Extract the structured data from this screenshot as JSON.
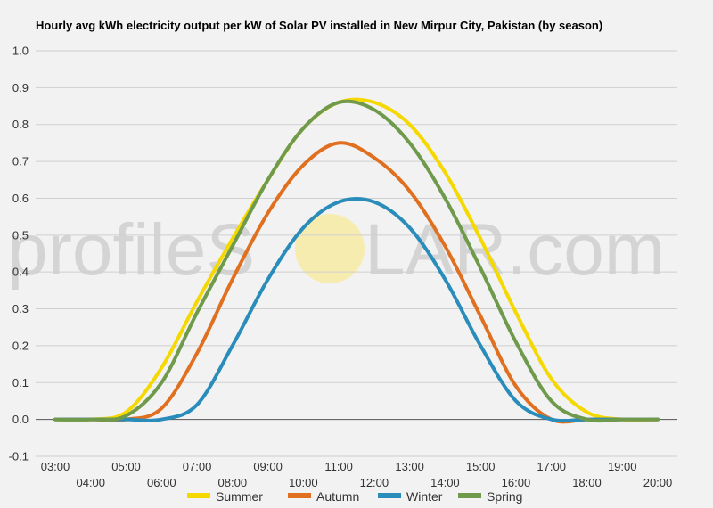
{
  "chart_data": {
    "type": "line",
    "title": "Hourly avg kWh electricity output per kW of Solar PV installed in New Mirpur City, Pakistan (by season)",
    "xlabel": "",
    "ylabel": "",
    "ylim": [
      -0.1,
      1.0
    ],
    "yticks": [
      "-0.1",
      "0.0",
      "0.1",
      "0.2",
      "0.3",
      "0.4",
      "0.5",
      "0.6",
      "0.7",
      "0.8",
      "0.9",
      "1.0"
    ],
    "xticks": [
      "03:00",
      "04:00",
      "05:00",
      "06:00",
      "07:00",
      "08:00",
      "09:00",
      "10:00",
      "11:00",
      "12:00",
      "13:00",
      "14:00",
      "15:00",
      "16:00",
      "17:00",
      "18:00",
      "19:00",
      "20:00"
    ],
    "x": [
      "03:00",
      "04:00",
      "05:00",
      "06:00",
      "07:00",
      "08:00",
      "09:00",
      "10:00",
      "11:00",
      "12:00",
      "13:00",
      "14:00",
      "15:00",
      "16:00",
      "17:00",
      "18:00",
      "19:00",
      "20:00"
    ],
    "grid": true,
    "legend_position": "bottom",
    "series": [
      {
        "name": "Summer",
        "color": "#f5d800",
        "values": [
          0.0,
          0.0,
          0.02,
          0.14,
          0.32,
          0.49,
          0.65,
          0.79,
          0.86,
          0.86,
          0.8,
          0.67,
          0.49,
          0.29,
          0.11,
          0.02,
          0.0,
          0.0
        ]
      },
      {
        "name": "Autumn",
        "color": "#e07020",
        "values": [
          0.0,
          0.0,
          0.0,
          0.03,
          0.18,
          0.38,
          0.56,
          0.69,
          0.75,
          0.71,
          0.62,
          0.47,
          0.28,
          0.09,
          0.0,
          0.0,
          0.0,
          0.0
        ]
      },
      {
        "name": "Winter",
        "color": "#2a8cba",
        "values": [
          0.0,
          0.0,
          0.0,
          0.0,
          0.04,
          0.2,
          0.38,
          0.52,
          0.59,
          0.59,
          0.52,
          0.38,
          0.2,
          0.05,
          0.0,
          0.0,
          0.0,
          0.0
        ]
      },
      {
        "name": "Spring",
        "color": "#6f9a4c",
        "values": [
          0.0,
          0.0,
          0.01,
          0.1,
          0.29,
          0.47,
          0.65,
          0.79,
          0.86,
          0.84,
          0.75,
          0.6,
          0.41,
          0.21,
          0.05,
          0.0,
          0.0,
          0.0
        ]
      }
    ]
  },
  "watermark": {
    "text_left": "profileS",
    "text_right": "LAR.com",
    "sun_color": "#f7ecb0"
  }
}
